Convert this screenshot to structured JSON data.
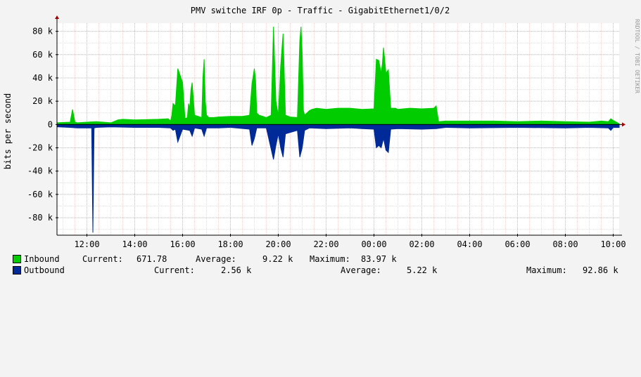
{
  "title": "PMV switche IRF 0p - Traffic - GigabitEthernet1/0/2",
  "watermark": "RRDTOOL / TOBI OETIKER",
  "chart_data": {
    "type": "area",
    "title": "PMV switche IRF 0p - Traffic - GigabitEthernet1/0/2",
    "ylabel": "bits per second",
    "ylim": [
      -95000,
      87000
    ],
    "y_ticks": [
      80000,
      60000,
      40000,
      20000,
      0,
      -20000,
      -40000,
      -60000,
      -80000
    ],
    "y_tick_labels": [
      "80 k",
      "60 k",
      "40 k",
      "20 k",
      "0",
      "-20 k",
      "-40 k",
      "-60 k",
      "-80 k"
    ],
    "xlim": [
      10.75,
      34.25
    ],
    "x_ticks": [
      12,
      14,
      16,
      18,
      20,
      22,
      24,
      26,
      28,
      30,
      32,
      34
    ],
    "x_tick_labels": [
      "12:00",
      "14:00",
      "16:00",
      "18:00",
      "20:00",
      "22:00",
      "00:00",
      "02:00",
      "04:00",
      "06:00",
      "08:00",
      "10:00"
    ],
    "grid": true,
    "series": [
      {
        "name": "Inbound",
        "color": "#00cc00",
        "x": [
          10.75,
          11.3,
          11.4,
          11.5,
          11.6,
          12.0,
          12.4,
          13.0,
          13.3,
          13.5,
          14.0,
          15.0,
          15.4,
          15.5,
          15.55,
          15.6,
          15.7,
          15.8,
          16.0,
          16.1,
          16.2,
          16.25,
          16.3,
          16.35,
          16.4,
          16.5,
          16.8,
          16.85,
          16.9,
          16.95,
          17.0,
          17.1,
          17.3,
          17.5,
          18.0,
          18.5,
          18.8,
          18.9,
          19.0,
          19.05,
          19.1,
          19.2,
          19.5,
          19.7,
          19.8,
          19.9,
          20.0,
          20.1,
          20.2,
          20.3,
          20.5,
          20.8,
          20.9,
          20.95,
          21.0,
          21.05,
          21.1,
          21.2,
          21.3,
          21.4,
          21.6,
          22.0,
          22.5,
          23.0,
          23.5,
          24.0,
          24.1,
          24.2,
          24.3,
          24.35,
          24.4,
          24.5,
          24.6,
          24.7,
          24.9,
          25.0,
          25.5,
          26.0,
          26.5,
          26.6,
          26.7,
          27.0,
          28.0,
          29.0,
          30.0,
          31.0,
          32.0,
          33.0,
          33.5,
          33.8,
          33.9,
          34.0,
          34.25
        ],
        "values": [
          1500,
          2000,
          13000,
          2000,
          1500,
          2000,
          2500,
          1500,
          4000,
          4500,
          4000,
          4500,
          5000,
          3000,
          8000,
          18000,
          16000,
          48000,
          36000,
          5000,
          6000,
          18000,
          14000,
          30000,
          36000,
          8000,
          6000,
          40000,
          56000,
          20000,
          8000,
          6000,
          6000,
          6500,
          7000,
          7000,
          8000,
          35000,
          48000,
          38000,
          10000,
          8000,
          6000,
          8000,
          84000,
          20000,
          8000,
          50000,
          78000,
          8000,
          6500,
          6000,
          72000,
          83970,
          60000,
          12000,
          8000,
          10000,
          12000,
          13000,
          14000,
          13000,
          14000,
          14000,
          13000,
          13500,
          56000,
          55000,
          44000,
          52000,
          66000,
          44000,
          47000,
          14000,
          14000,
          13000,
          14000,
          13500,
          14000,
          16000,
          2500,
          3000,
          3000,
          3000,
          2500,
          3000,
          2500,
          2000,
          3000,
          2500,
          5000,
          3500,
          672
        ]
      },
      {
        "name": "Outbound",
        "color": "#002a97",
        "x": [
          10.75,
          11.3,
          11.6,
          12.2,
          12.25,
          12.3,
          12.4,
          13.0,
          14.0,
          15.0,
          15.5,
          15.6,
          15.7,
          15.8,
          16.0,
          16.3,
          16.4,
          16.5,
          16.8,
          16.9,
          17.0,
          17.5,
          18.0,
          18.8,
          18.9,
          19.0,
          19.1,
          19.5,
          19.8,
          19.9,
          20.0,
          20.1,
          20.2,
          20.3,
          20.8,
          20.9,
          21.0,
          21.1,
          21.3,
          22.0,
          23.0,
          23.5,
          24.0,
          24.1,
          24.2,
          24.3,
          24.4,
          24.5,
          24.6,
          24.7,
          25.0,
          26.0,
          26.6,
          27.0,
          28.0,
          30.0,
          32.0,
          33.0,
          33.8,
          33.9,
          34.0,
          34.25
        ],
        "values": [
          -2000,
          -2500,
          -3000,
          -3000,
          -92860,
          -3000,
          -2500,
          -2000,
          -2500,
          -2500,
          -3000,
          -5000,
          -4000,
          -15000,
          -4000,
          -5000,
          -10000,
          -3000,
          -4000,
          -10000,
          -3000,
          -3000,
          -2500,
          -4000,
          -18000,
          -12000,
          -3000,
          -3000,
          -30000,
          -18000,
          -8000,
          -20000,
          -28000,
          -8000,
          -5000,
          -28000,
          -20000,
          -5000,
          -3000,
          -3500,
          -3000,
          -3500,
          -4000,
          -20000,
          -18000,
          -20000,
          -12000,
          -22000,
          -24000,
          -4000,
          -3500,
          -4000,
          -3500,
          -2500,
          -3000,
          -2500,
          -3000,
          -2500,
          -3000,
          -5000,
          -2500,
          -2560
        ]
      }
    ]
  },
  "legend": {
    "inbound": {
      "name": "Inbound",
      "current_label": "Current:",
      "current": "671.78",
      "average_label": "Average:",
      "average": "9.22 k",
      "maximum_label": "Maximum:",
      "maximum": "83.97 k",
      "color": "#00cc00"
    },
    "outbound": {
      "name": "Outbound",
      "current_label": "Current:",
      "current": "2.56 k",
      "average_label": "Average:",
      "average": "5.22 k",
      "maximum_label": "Maximum:",
      "maximum": "92.86 k",
      "color": "#002a97"
    }
  }
}
